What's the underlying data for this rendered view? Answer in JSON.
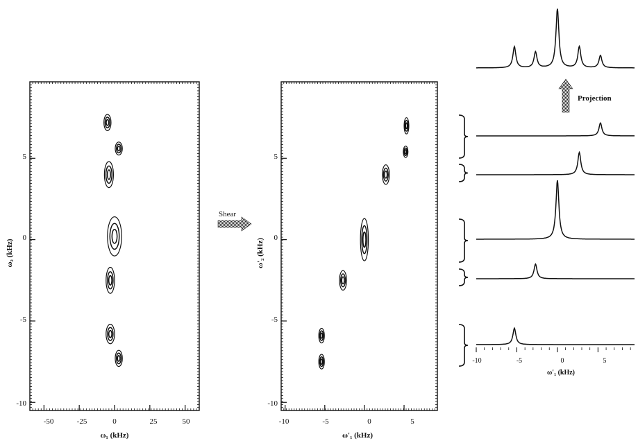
{
  "figure": {
    "shear_label": "Shear",
    "projection_label": "Projection"
  },
  "panel_left": {
    "xlabel": "ω₁ (kHz)",
    "ylabel": "ω₂ (kHz)",
    "x_ticks": [
      "-50",
      "-25",
      "0",
      "25",
      "50"
    ],
    "y_ticks": [
      "5",
      "0",
      "-5",
      "-10"
    ]
  },
  "panel_middle": {
    "xlabel": "ω'₁ (kHz)",
    "ylabel": "ω'₂ (kHz)",
    "x_ticks": [
      "-10",
      "-5",
      "0",
      "5"
    ],
    "y_ticks": [
      "5",
      "0",
      "-5",
      "-10"
    ]
  },
  "panel_spectra": {
    "xlabel": "ω'₁ (kHz)",
    "x_ticks": [
      "-10",
      "-5",
      "0",
      "5"
    ]
  },
  "chart_data": [
    {
      "type": "contour",
      "panel": "left",
      "xlabel": "ω₁ (kHz)",
      "ylabel": "ω₂ (kHz)",
      "xlim": [
        -60,
        60
      ],
      "ylim": [
        -10.5,
        9.7
      ],
      "peaks": [
        {
          "x": -5,
          "y": 7.2,
          "sx": 2.5,
          "sy": 0.5
        },
        {
          "x": 3,
          "y": 5.6,
          "sx": 2.5,
          "sy": 0.4
        },
        {
          "x": -4,
          "y": 4.0,
          "sx": 3.2,
          "sy": 0.8
        },
        {
          "x": 0,
          "y": 0.2,
          "sx": 5,
          "sy": 1.2
        },
        {
          "x": -3,
          "y": -2.5,
          "sx": 3,
          "sy": 0.8
        },
        {
          "x": -3,
          "y": -5.8,
          "sx": 3,
          "sy": 0.6
        },
        {
          "x": 3,
          "y": -7.3,
          "sx": 2.5,
          "sy": 0.5
        }
      ]
    },
    {
      "type": "contour",
      "panel": "middle",
      "xlabel": "ω'₁ (kHz)",
      "ylabel": "ω'₂ (kHz)",
      "xlim": [
        -10.5,
        9.2
      ],
      "ylim": [
        -10.5,
        9.7
      ],
      "peaks": [
        {
          "x": 5.3,
          "y": 7.0,
          "sx": 0.3,
          "sy": 0.5
        },
        {
          "x": 5.2,
          "y": 5.4,
          "sx": 0.3,
          "sy": 0.35
        },
        {
          "x": 2.7,
          "y": 4.0,
          "sx": 0.45,
          "sy": 0.6
        },
        {
          "x": 0,
          "y": 0,
          "sx": 0.5,
          "sy": 1.3
        },
        {
          "x": -2.7,
          "y": -2.5,
          "sx": 0.45,
          "sy": 0.6
        },
        {
          "x": -5.4,
          "y": -5.9,
          "sx": 0.35,
          "sy": 0.45
        },
        {
          "x": -5.4,
          "y": -7.5,
          "sx": 0.35,
          "sy": 0.45
        }
      ]
    },
    {
      "type": "line",
      "panel": "spectra",
      "xlabel": "ω'₁ (kHz)",
      "xlim": [
        -10,
        9.5
      ],
      "series": [
        {
          "role": "projection",
          "peaks": [
            {
              "x": -5.3,
              "h": 0.36
            },
            {
              "x": -2.7,
              "h": 0.27
            },
            {
              "x": 0,
              "h": 1.0
            },
            {
              "x": 2.7,
              "h": 0.36
            },
            {
              "x": 5.3,
              "h": 0.21
            }
          ]
        },
        {
          "role": "slice",
          "peaks": [
            {
              "x": 5.3,
              "h": 0.22
            }
          ]
        },
        {
          "role": "slice",
          "peaks": [
            {
              "x": 2.7,
              "h": 0.38
            }
          ]
        },
        {
          "role": "slice",
          "peaks": [
            {
              "x": 0,
              "h": 1.0
            }
          ]
        },
        {
          "role": "slice",
          "peaks": [
            {
              "x": -2.7,
              "h": 0.25
            }
          ]
        },
        {
          "role": "slice",
          "peaks": [
            {
              "x": -5.3,
              "h": 0.28
            }
          ]
        }
      ]
    }
  ]
}
